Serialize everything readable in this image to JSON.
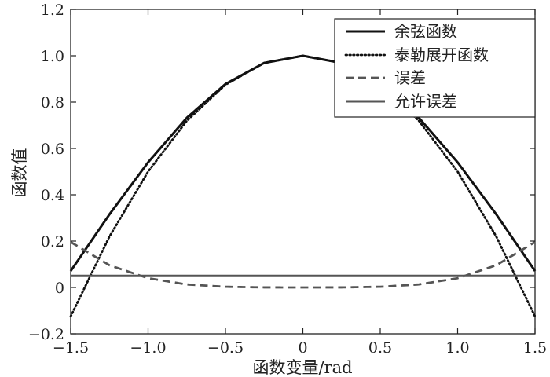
{
  "chart_data": {
    "type": "line",
    "title": "",
    "xlabel": "函数变量/rad",
    "ylabel": "函数值",
    "xlim": [
      -1.5,
      1.5
    ],
    "ylim": [
      -0.2,
      1.2
    ],
    "xticks": [
      -1.5,
      -1.0,
      -0.5,
      0,
      0.5,
      1.0,
      1.5
    ],
    "xtick_labels": [
      "−1.5",
      "−1.0",
      "−0.5",
      "0",
      "0.5",
      "1.0",
      "1.5"
    ],
    "yticks": [
      -0.2,
      0,
      0.2,
      0.4,
      0.6,
      0.8,
      1.0,
      1.2
    ],
    "ytick_labels": [
      "−0.2",
      "0",
      "0.2",
      "0.4",
      "0.6",
      "0.8",
      "1.0",
      "1.2"
    ],
    "grid": false,
    "legend_position": "top-right",
    "series": [
      {
        "name": "余弦函数",
        "style": "solid",
        "color": "#111111",
        "x": [
          -1.5,
          -1.25,
          -1.0,
          -0.75,
          -0.5,
          -0.25,
          0,
          0.25,
          0.5,
          0.75,
          1.0,
          1.25,
          1.5
        ],
        "y": [
          0.071,
          0.315,
          0.54,
          0.732,
          0.878,
          0.969,
          1.0,
          0.969,
          0.878,
          0.732,
          0.54,
          0.315,
          0.071
        ]
      },
      {
        "name": "泰勒展开函数",
        "style": "dotted",
        "color": "#111111",
        "x": [
          -1.5,
          -1.25,
          -1.0,
          -0.75,
          -0.5,
          -0.25,
          0,
          0.25,
          0.5,
          0.75,
          1.0,
          1.25,
          1.5
        ],
        "y": [
          -0.125,
          0.219,
          0.5,
          0.719,
          0.875,
          0.969,
          1.0,
          0.969,
          0.875,
          0.719,
          0.5,
          0.219,
          -0.125
        ]
      },
      {
        "name": "误差",
        "style": "dashed",
        "color": "#555555",
        "x": [
          -1.5,
          -1.25,
          -1.0,
          -0.75,
          -0.5,
          -0.25,
          0,
          0.25,
          0.5,
          0.75,
          1.0,
          1.25,
          1.5
        ],
        "y": [
          0.196,
          0.096,
          0.04,
          0.013,
          0.003,
          0.0002,
          0.0,
          0.0002,
          0.003,
          0.013,
          0.04,
          0.096,
          0.196
        ]
      },
      {
        "name": "允许误差",
        "style": "solid",
        "color": "#555555",
        "x": [
          -1.5,
          1.5
        ],
        "y": [
          0.05,
          0.05
        ]
      }
    ]
  }
}
